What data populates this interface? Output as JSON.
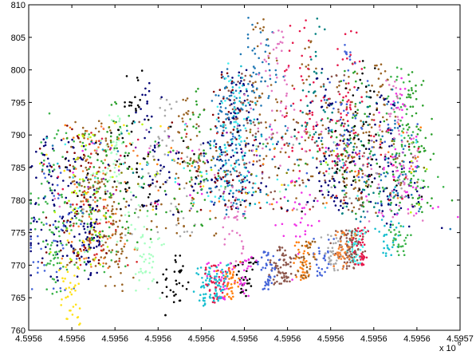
{
  "chart_data": {
    "type": "scatter",
    "title": "",
    "xlabel": "",
    "ylabel": "",
    "x_tick_labels": [
      "4.5956",
      "4.5956",
      "4.5956",
      "4.5956",
      "4.5956",
      "4.5956",
      "4.5956",
      "4.5956",
      "4.5956",
      "4.5956",
      "4.5957"
    ],
    "x_exponent_base": "x 10",
    "x_exponent_power": "6",
    "y_ticks": [
      760,
      765,
      770,
      775,
      780,
      785,
      790,
      795,
      800,
      805,
      810
    ],
    "y_tick_labels": [
      "760",
      "765",
      "770",
      "775",
      "780",
      "785",
      "790",
      "795",
      "800",
      "805",
      "810"
    ],
    "xlim": [
      0,
      10
    ],
    "ylim": [
      760,
      810
    ],
    "grid": false,
    "legend": false,
    "point_count_approx": 2600,
    "colors": [
      "#e6194b",
      "#3cb44b",
      "#ffe119",
      "#4363d8",
      "#f58231",
      "#911eb4",
      "#46f0f0",
      "#f032e6",
      "#bcf60c",
      "#008080",
      "#9a6324",
      "#800000",
      "#aaffc3",
      "#808000",
      "#000075",
      "#a9a9a9",
      "#000000",
      "#1f77b4",
      "#2ca02c",
      "#d62728",
      "#9467bd",
      "#8c564b",
      "#e377c2",
      "#17becf",
      "#ff7f0e"
    ]
  }
}
